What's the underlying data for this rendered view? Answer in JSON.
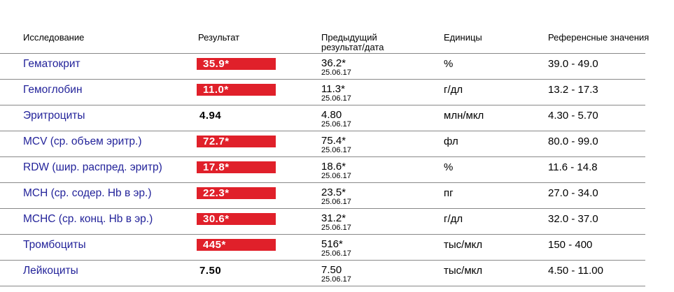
{
  "table": {
    "header": [
      "Исследование",
      "Результат",
      "Предыдущий результат/дата",
      "Единицы",
      "Референсные значения"
    ],
    "rows": [
      {
        "name": "Гематокрит",
        "result": "35.9*",
        "previous": "36.2*",
        "date": "25.06.17",
        "units": "%",
        "reference": "39.0 - 49.0"
      },
      {
        "name": "Гемоглобин",
        "result": "11.0*",
        "previous": "11.3*",
        "date": "25.06.17",
        "units": "г/дл",
        "reference": "13.2 - 17.3"
      },
      {
        "name": "Эритроциты",
        "result": "4.94",
        "previous": "4.80",
        "date": "25.06.17",
        "units": "млн/мкл",
        "reference": "4.30 - 5.70"
      },
      {
        "name": "MCV (ср. объем эритр.)",
        "result": "72.7*",
        "previous": "75.4*",
        "date": "25.06.17",
        "units": "фл",
        "reference": "80.0 - 99.0"
      },
      {
        "name": "RDW (шир. распред. эритр)",
        "result": "17.8*",
        "previous": "18.6*",
        "date": "25.06.17",
        "units": "%",
        "reference": "11.6 - 14.8"
      },
      {
        "name": "MCH (ср. содер. Hb в эр.)",
        "result": "22.3*",
        "previous": "23.5*",
        "date": "25.06.17",
        "units": "пг",
        "reference": "27.0 - 34.0"
      },
      {
        "name": "MCHC (ср. конц. Hb в эр.)",
        "result": "30.6*",
        "previous": "31.2*",
        "date": "25.06.17",
        "units": "г/дл",
        "reference": "32.0 - 37.0"
      },
      {
        "name": "Тромбоциты",
        "result": "445*",
        "previous": "516*",
        "date": "25.06.17",
        "units": "тыс/мкл",
        "reference": "150 - 400"
      },
      {
        "name": "Лейкоциты",
        "result": "7.50",
        "previous": "7.50",
        "date": "25.06.17",
        "units": "тыс/мкл",
        "reference": "4.50 - 11.00"
      }
    ]
  }
}
